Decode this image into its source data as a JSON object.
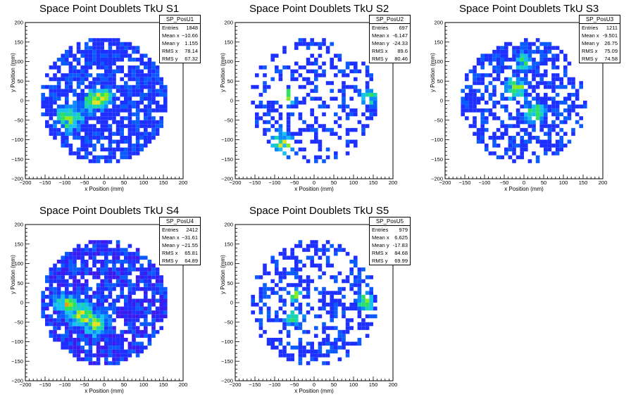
{
  "canvas_background": "#ffffff",
  "colors": {
    "palette": [
      "#3a1cf0",
      "#1e30ff",
      "#0a5cff",
      "#0a8cff",
      "#18c0f0",
      "#1ad3b0",
      "#2ee060",
      "#8aea22",
      "#e6e022",
      "#f09a1a",
      "#ef3a1a"
    ]
  },
  "chart_data": [
    {
      "type": "heatmap",
      "title": "Space Point Doublets TkU S1",
      "xlabel": "x Position (mm)",
      "ylabel": "y Position (mm)",
      "xlim": [
        -200,
        200
      ],
      "ylim": [
        -200,
        200
      ],
      "xticks": [
        -200,
        -150,
        -100,
        -50,
        0,
        50,
        100,
        150,
        200
      ],
      "yticks": [
        -200,
        -150,
        -100,
        -50,
        0,
        50,
        100,
        150,
        200
      ],
      "bin_size_mm": 10,
      "radius_mm": 160,
      "fill_fraction": 0.75,
      "hotspots": [
        [
          -90,
          -45,
          45
        ],
        [
          -30,
          0,
          40
        ],
        [
          0,
          10,
          35
        ]
      ],
      "stats": {
        "name": "SP_PosU1",
        "rows": [
          [
            "Entries",
            "1848"
          ],
          [
            "Mean x",
            "−10.66"
          ],
          [
            "Mean y",
            "1.155"
          ],
          [
            "RMS x",
            "78.14"
          ],
          [
            "RMS y",
            "67.32"
          ]
        ]
      }
    },
    {
      "type": "heatmap",
      "title": "Space Point Doublets TkU S2",
      "xlabel": "x Position (mm)",
      "ylabel": "y Position (mm)",
      "xlim": [
        -200,
        200
      ],
      "ylim": [
        -200,
        200
      ],
      "xticks": [
        -200,
        -150,
        -100,
        -50,
        0,
        50,
        100,
        150,
        200
      ],
      "yticks": [
        -200,
        -150,
        -100,
        -50,
        0,
        50,
        100,
        150,
        200
      ],
      "bin_size_mm": 10,
      "radius_mm": 160,
      "fill_fraction": 0.38,
      "hotspots": [
        [
          -80,
          -110,
          40
        ],
        [
          -60,
          10,
          30
        ],
        [
          140,
          10,
          25
        ]
      ],
      "stats": {
        "name": "SP_PosU2",
        "rows": [
          [
            "Entries",
            "697"
          ],
          [
            "Mean x",
            "-6.147"
          ],
          [
            "Mean y",
            "-24.33"
          ],
          [
            "RMS x",
            "89.6"
          ],
          [
            "RMS y",
            "80.46"
          ]
        ]
      }
    },
    {
      "type": "heatmap",
      "title": "Space Point Doublets TkU S3",
      "xlabel": "x Position (mm)",
      "ylabel": "y Position (mm)",
      "xlim": [
        -200,
        200
      ],
      "ylim": [
        -200,
        200
      ],
      "xticks": [
        -200,
        -150,
        -100,
        -50,
        0,
        50,
        100,
        150,
        200
      ],
      "yticks": [
        -200,
        -150,
        -100,
        -50,
        0,
        50,
        100,
        150,
        200
      ],
      "bin_size_mm": 10,
      "radius_mm": 160,
      "fill_fraction": 0.58,
      "hotspots": [
        [
          -20,
          30,
          40
        ],
        [
          30,
          -30,
          35
        ],
        [
          0,
          100,
          30
        ]
      ],
      "stats": {
        "name": "SP_PosU3",
        "rows": [
          [
            "Entries",
            "1211"
          ],
          [
            "Mean x",
            "-9.501"
          ],
          [
            "Mean y",
            "26.75"
          ],
          [
            "RMS x",
            "75.09"
          ],
          [
            "RMS y",
            "74.58"
          ]
        ]
      }
    },
    {
      "type": "heatmap",
      "title": "Space Point Doublets TkU S4",
      "xlabel": "x Position (mm)",
      "ylabel": "y Position (mm)",
      "xlim": [
        -200,
        200
      ],
      "ylim": [
        -200,
        200
      ],
      "xticks": [
        -200,
        -150,
        -100,
        -50,
        0,
        50,
        100,
        150,
        200
      ],
      "yticks": [
        -200,
        -150,
        -100,
        -50,
        0,
        50,
        100,
        150,
        200
      ],
      "bin_size_mm": 10,
      "radius_mm": 160,
      "fill_fraction": 0.82,
      "hotspots": [
        [
          -60,
          -25,
          45
        ],
        [
          -20,
          -55,
          40
        ],
        [
          -100,
          0,
          35
        ]
      ],
      "stats": {
        "name": "SP_PosU4",
        "rows": [
          [
            "Entries",
            "2412"
          ],
          [
            "Mean x",
            "−31.61"
          ],
          [
            "Mean y",
            "−21.55"
          ],
          [
            "RMS x",
            "65.81"
          ],
          [
            "RMS y",
            "64.89"
          ]
        ]
      }
    },
    {
      "type": "heatmap",
      "title": "Space Point Doublets TkU S5",
      "xlabel": "x Position (mm)",
      "ylabel": "y Position (mm)",
      "xlim": [
        -200,
        200
      ],
      "ylim": [
        -200,
        200
      ],
      "xticks": [
        -200,
        -150,
        -100,
        -50,
        0,
        50,
        100,
        150,
        200
      ],
      "yticks": [
        -200,
        -150,
        -100,
        -50,
        0,
        50,
        100,
        150,
        200
      ],
      "bin_size_mm": 10,
      "radius_mm": 160,
      "fill_fraction": 0.45,
      "hotspots": [
        [
          -50,
          -40,
          30
        ],
        [
          -50,
          20,
          25
        ],
        [
          130,
          0,
          30
        ]
      ],
      "stats": {
        "name": "SP_PosU5",
        "rows": [
          [
            "Entries",
            "979"
          ],
          [
            "Mean x",
            "6.625"
          ],
          [
            "Mean y",
            "-17.83"
          ],
          [
            "RMS x",
            "84.68"
          ],
          [
            "RMS y",
            "69.99"
          ]
        ]
      }
    }
  ]
}
